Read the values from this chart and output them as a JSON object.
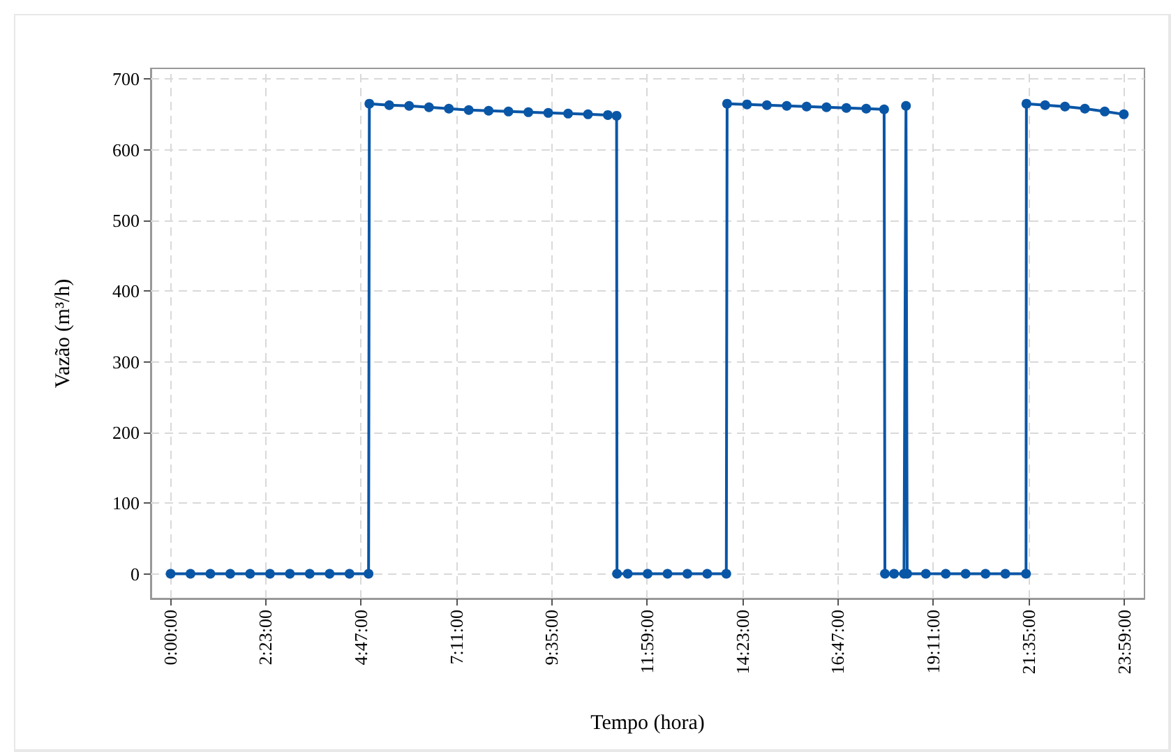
{
  "chart_data": {
    "type": "line",
    "xlabel": "Tempo (hora)",
    "ylabel": "Vazão (m³/h)",
    "x": [
      0,
      0.5,
      1,
      1.5,
      2,
      2.5,
      3,
      3.5,
      4,
      4.5,
      4.98,
      5.0,
      5.5,
      6.0,
      6.5,
      7.0,
      7.5,
      8.0,
      8.5,
      9.0,
      9.5,
      10.0,
      10.5,
      11.0,
      11.22,
      11.23,
      11.5,
      12,
      12.5,
      13,
      13.5,
      13.98,
      14.0,
      14.5,
      15,
      15.5,
      16,
      16.5,
      17,
      17.5,
      17.95,
      17.97,
      18.2,
      18.45,
      18.5,
      18.53,
      19,
      19.5,
      20,
      20.5,
      21,
      21.52,
      21.53,
      22,
      22.5,
      23,
      23.5,
      23.98
    ],
    "series": [
      {
        "color": "#0a56a6",
        "values": [
          0,
          0,
          0,
          0,
          0,
          0,
          0,
          0,
          0,
          0,
          0,
          665,
          663,
          662,
          660,
          658,
          656,
          655,
          654,
          653,
          652,
          651,
          650,
          649,
          648,
          0,
          0,
          0,
          0,
          0,
          0,
          0,
          665,
          664,
          663,
          662,
          661,
          660,
          659,
          658,
          657,
          0,
          0,
          0,
          662,
          0,
          0,
          0,
          0,
          0,
          0,
          0,
          665,
          663,
          661,
          658,
          654,
          650
        ]
      }
    ],
    "xlim": [
      -0.5,
      24.5
    ],
    "xticks": [
      {
        "value": 0,
        "label": "0:00:00"
      },
      {
        "value": 2.3833,
        "label": "2:23:00"
      },
      {
        "value": 4.7833,
        "label": "4:47:00"
      },
      {
        "value": 7.1833,
        "label": "7:11:00"
      },
      {
        "value": 9.5833,
        "label": "9:35:00"
      },
      {
        "value": 11.9833,
        "label": "11:59:00"
      },
      {
        "value": 14.3833,
        "label": "14:23:00"
      },
      {
        "value": 16.7833,
        "label": "16:47:00"
      },
      {
        "value": 19.1833,
        "label": "19:11:00"
      },
      {
        "value": 21.5833,
        "label": "21:35:00"
      },
      {
        "value": 23.9833,
        "label": "23:59:00"
      }
    ],
    "ylim": [
      -35,
      715
    ],
    "yticks": [
      0,
      100,
      200,
      300,
      400,
      500,
      600,
      700
    ],
    "grid": true,
    "marker": "circle",
    "line_style": "solid"
  }
}
